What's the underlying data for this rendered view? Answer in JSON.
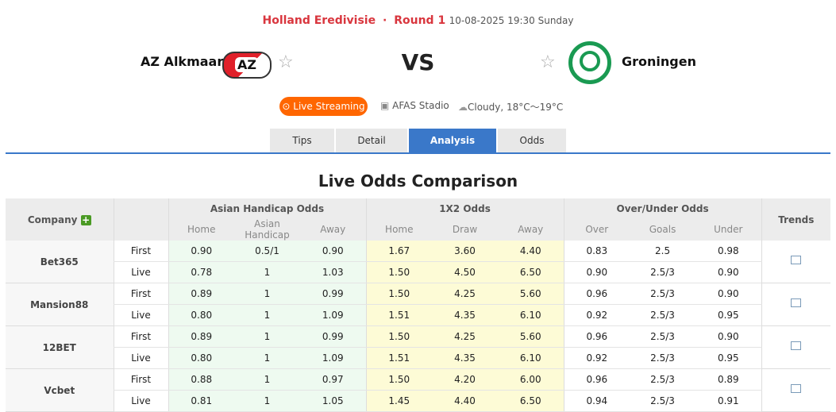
{
  "header": {
    "league": "Holland Eredivisie",
    "dot": "·",
    "round": "Round 1",
    "datetime": "10-08-2025 19:30 Sunday",
    "home": "AZ Alkmaar",
    "away": "Groningen",
    "vs": "VS",
    "home_logo_text": "AZ",
    "live_label": "Live Streaming",
    "stadium": "AFAS Stadio",
    "weather": "Cloudy, 18°C～19°C"
  },
  "tabs": [
    {
      "label": "Tips"
    },
    {
      "label": "Detail"
    },
    {
      "label": "Analysis",
      "active": true
    },
    {
      "label": "Odds"
    }
  ],
  "section_title": "Live Odds Comparison",
  "table": {
    "company": "Company",
    "trends": "Trends",
    "ah": "Asian Handicap Odds",
    "x2": "1X2 Odds",
    "ou": "Over/Under Odds",
    "sub": [
      "Home",
      "Asian Handicap",
      "Away",
      "Home",
      "Draw",
      "Away",
      "Over",
      "Goals",
      "Under"
    ],
    "rows": [
      {
        "company": "Bet365",
        "first": [
          "0.90",
          "0.5/1",
          "0.90",
          "1.67",
          "3.60",
          "4.40",
          "0.83",
          "2.5",
          "0.98"
        ],
        "live": [
          "0.78",
          "1",
          "1.03",
          "1.50",
          "4.50",
          "6.50",
          "0.90",
          "2.5/3",
          "0.90"
        ]
      },
      {
        "company": "Mansion88",
        "first": [
          "0.89",
          "1",
          "0.99",
          "1.50",
          "4.25",
          "5.60",
          "0.96",
          "2.5/3",
          "0.90"
        ],
        "live": [
          "0.80",
          "1",
          "1.09",
          "1.51",
          "4.35",
          "6.10",
          "0.92",
          "2.5/3",
          "0.95"
        ]
      },
      {
        "company": "12BET",
        "first": [
          "0.89",
          "1",
          "0.99",
          "1.50",
          "4.25",
          "5.60",
          "0.96",
          "2.5/3",
          "0.90"
        ],
        "live": [
          "0.80",
          "1",
          "1.09",
          "1.51",
          "4.35",
          "6.10",
          "0.92",
          "2.5/3",
          "0.95"
        ]
      },
      {
        "company": "Vcbet",
        "first": [
          "0.88",
          "1",
          "0.97",
          "1.50",
          "4.20",
          "6.00",
          "0.96",
          "2.5/3",
          "0.89"
        ],
        "live": [
          "0.81",
          "1",
          "1.05",
          "1.45",
          "4.40",
          "6.50",
          "0.94",
          "2.5/3",
          "0.91"
        ]
      }
    ],
    "first_label": "First",
    "live_label": "Live"
  }
}
